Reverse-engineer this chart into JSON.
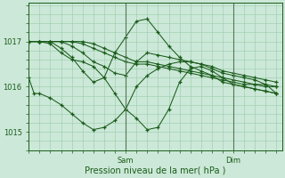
{
  "background_color": "#cce8d8",
  "line_color": "#1a5c1a",
  "grid_color": "#99ccaa",
  "xlabel": "Pression niveau de la mer( hPa )",
  "ylim": [
    1014.6,
    1017.85
  ],
  "xlim": [
    0,
    47
  ],
  "sam_x": 18,
  "dim_x": 38,
  "yticks": [
    1015,
    1016,
    1017
  ],
  "xtick_fontsize": 7,
  "ytick_fontsize": 6,
  "xlabel_fontsize": 7,
  "series": [
    [
      0,
      1016.2,
      1,
      1015.85,
      2,
      1015.85,
      4,
      1015.75,
      6,
      1015.6,
      8,
      1015.4,
      10,
      1015.2,
      12,
      1015.05,
      14,
      1015.1,
      16,
      1015.25,
      18,
      1015.5,
      20,
      1016.0,
      22,
      1016.25,
      24,
      1016.4,
      26,
      1016.5,
      28,
      1016.55,
      30,
      1016.55,
      32,
      1016.5,
      34,
      1016.4,
      36,
      1016.3,
      38,
      1016.25,
      40,
      1016.2,
      42,
      1016.15,
      44,
      1016.05,
      46,
      1015.85
    ],
    [
      0,
      1017.0,
      2,
      1017.0,
      4,
      1016.95,
      6,
      1016.75,
      8,
      1016.6,
      10,
      1016.55,
      12,
      1016.45,
      14,
      1016.2,
      16,
      1015.85,
      18,
      1015.5,
      20,
      1015.3,
      22,
      1015.05,
      24,
      1015.1,
      26,
      1015.5,
      28,
      1016.1,
      30,
      1016.4,
      32,
      1016.45,
      34,
      1016.35,
      36,
      1016.2,
      38,
      1016.05,
      40,
      1016.0,
      42,
      1015.95,
      44,
      1015.9,
      46,
      1015.85
    ],
    [
      0,
      1017.0,
      2,
      1017.0,
      4,
      1017.0,
      6,
      1016.85,
      8,
      1016.65,
      10,
      1016.35,
      12,
      1016.1,
      14,
      1016.2,
      16,
      1016.75,
      18,
      1017.1,
      20,
      1017.45,
      22,
      1017.5,
      24,
      1017.2,
      26,
      1016.9,
      28,
      1016.65,
      30,
      1016.45,
      32,
      1016.35,
      34,
      1016.25,
      36,
      1016.1,
      38,
      1016.05,
      40,
      1016.0,
      42,
      1015.95,
      44,
      1015.9,
      46,
      1015.85
    ],
    [
      0,
      1017.0,
      2,
      1017.0,
      4,
      1017.0,
      6,
      1017.0,
      8,
      1016.9,
      10,
      1016.75,
      12,
      1016.55,
      14,
      1016.45,
      16,
      1016.3,
      18,
      1016.25,
      20,
      1016.55,
      22,
      1016.75,
      24,
      1016.7,
      26,
      1016.65,
      28,
      1016.6,
      30,
      1016.55,
      32,
      1016.5,
      34,
      1016.45,
      36,
      1016.35,
      38,
      1016.3,
      40,
      1016.25,
      42,
      1016.2,
      44,
      1016.15,
      46,
      1016.1
    ],
    [
      0,
      1017.0,
      2,
      1017.0,
      4,
      1017.0,
      6,
      1017.0,
      8,
      1017.0,
      10,
      1016.95,
      12,
      1016.85,
      14,
      1016.75,
      16,
      1016.65,
      18,
      1016.55,
      20,
      1016.5,
      22,
      1016.5,
      24,
      1016.45,
      26,
      1016.4,
      28,
      1016.35,
      30,
      1016.3,
      32,
      1016.25,
      34,
      1016.2,
      36,
      1016.15,
      38,
      1016.1,
      40,
      1016.05,
      42,
      1016.05,
      44,
      1016.0,
      46,
      1016.0
    ],
    [
      0,
      1017.0,
      2,
      1017.0,
      4,
      1017.0,
      6,
      1017.0,
      8,
      1017.0,
      10,
      1017.0,
      12,
      1016.95,
      14,
      1016.85,
      16,
      1016.75,
      18,
      1016.65,
      20,
      1016.55,
      22,
      1016.55,
      24,
      1016.5,
      26,
      1016.45,
      28,
      1016.4,
      30,
      1016.35,
      32,
      1016.3,
      34,
      1016.25,
      36,
      1016.2,
      38,
      1016.15,
      40,
      1016.1,
      42,
      1016.05,
      44,
      1016.05,
      46,
      1016.0
    ]
  ]
}
